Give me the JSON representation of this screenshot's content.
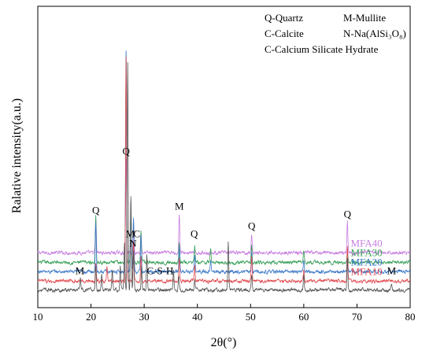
{
  "chart_data": {
    "type": "line",
    "title": "",
    "xlabel": "2θ(°)",
    "ylabel": "Ralative intensity(a.u.)",
    "xlim": [
      10,
      80
    ],
    "xticks": [
      10,
      20,
      30,
      40,
      50,
      60,
      70,
      80
    ],
    "y_ticks_shown": false,
    "legend": {
      "placement": "top-right",
      "lines": [
        {
          "col1": "Q-Quartz",
          "col2": "M-Mullite"
        },
        {
          "col1": "C-Calcite",
          "col2": "N-Na(AlSi₃O₈)"
        },
        {
          "col1": "C-Calcium Silicate Hydrate",
          "col2": ""
        }
      ]
    },
    "series": [
      {
        "name": "MFA40",
        "color": "#c77ee0",
        "baseline": 0.935,
        "noise": 0.08,
        "peaks": [
          [
            20.9,
            0.9
          ],
          [
            26.6,
            2.4
          ],
          [
            28.0,
            0.7
          ],
          [
            29.4,
            0.5
          ],
          [
            36.6,
            1.0
          ],
          [
            50.2,
            0.5
          ],
          [
            68.2,
            0.8
          ]
        ]
      },
      {
        "name": "MFA30",
        "color": "#3aa15a",
        "baseline": 0.69,
        "noise": 0.08,
        "peaks": [
          [
            20.9,
            1.2
          ],
          [
            26.6,
            5.3
          ],
          [
            27.5,
            1.2
          ],
          [
            29.4,
            0.8
          ],
          [
            36.6,
            0.5
          ],
          [
            39.5,
            0.4
          ],
          [
            42.5,
            0.3
          ],
          [
            50.2,
            0.4
          ],
          [
            60.0,
            0.3
          ],
          [
            68.2,
            0.3
          ]
        ]
      },
      {
        "name": "MFA20",
        "color": "#3c78c8",
        "baseline": 0.455,
        "noise": 0.08,
        "peaks": [
          [
            20.9,
            1.3
          ],
          [
            26.6,
            5.6
          ],
          [
            27.5,
            1.8
          ],
          [
            28.0,
            1.4
          ],
          [
            29.4,
            0.9
          ],
          [
            36.6,
            0.6
          ],
          [
            39.5,
            0.4
          ],
          [
            42.5,
            0.3
          ],
          [
            50.2,
            0.5
          ],
          [
            60.0,
            0.3
          ],
          [
            68.2,
            0.3
          ]
        ]
      },
      {
        "name": "MFA10",
        "color": "#e04b52",
        "baseline": 0.215,
        "noise": 0.08,
        "peaks": [
          [
            20.9,
            0.5
          ],
          [
            23.0,
            0.4
          ],
          [
            26.6,
            5.7
          ],
          [
            28.0,
            1.0
          ],
          [
            29.4,
            0.6
          ],
          [
            36.6,
            0.6
          ],
          [
            39.5,
            0.4
          ],
          [
            50.2,
            0.6
          ],
          [
            60.0,
            0.3
          ],
          [
            68.2,
            0.9
          ]
        ]
      },
      {
        "name": "",
        "color": "#555555",
        "baseline": -0.01,
        "noise": 0.08,
        "peaks": [
          [
            18.0,
            0.3
          ],
          [
            20.9,
            0.6
          ],
          [
            22.0,
            0.4
          ],
          [
            24.0,
            0.5
          ],
          [
            25.5,
            0.6
          ],
          [
            26.3,
            1.2
          ],
          [
            26.9,
            5.8
          ],
          [
            27.5,
            2.4
          ],
          [
            28.0,
            1.0
          ],
          [
            29.5,
            0.6
          ],
          [
            30.5,
            0.9
          ],
          [
            35.5,
            0.5
          ],
          [
            36.5,
            0.4
          ],
          [
            39.5,
            0.3
          ],
          [
            45.8,
            1.2
          ],
          [
            50.2,
            0.4
          ],
          [
            60.0,
            0.4
          ],
          [
            68.2,
            0.8
          ],
          [
            76.5,
            0.2
          ]
        ]
      }
    ],
    "series_labels": [
      {
        "text": "MFA40",
        "color": "#c77ee0",
        "series": 0
      },
      {
        "text": "MFA30",
        "color": "#3aa15a",
        "series": 1
      },
      {
        "text": "MFA20",
        "color": "#3c78c8",
        "series": 2
      },
      {
        "text": "MFA10",
        "color": "#e04b52",
        "series": 3
      }
    ],
    "annotations": [
      {
        "text": "Q",
        "x": 20.9,
        "series": 0
      },
      {
        "text": "Q",
        "x": 26.6,
        "series": 0
      },
      {
        "text": "M",
        "x": 27.4,
        "series": 0
      },
      {
        "text": "C",
        "x": 28.6,
        "series": 0
      },
      {
        "text": "M",
        "x": 36.6,
        "series": 0
      },
      {
        "text": "Q",
        "x": 39.4,
        "series": 0
      },
      {
        "text": "Q",
        "x": 50.2,
        "series": 0
      },
      {
        "text": "Q",
        "x": 68.2,
        "series": 0
      },
      {
        "text": "N",
        "x": 27.9,
        "series": 1
      },
      {
        "text": "M",
        "x": 17.9,
        "series": 4
      },
      {
        "text": "C-S-H",
        "x": 33.0,
        "series": 4
      },
      {
        "text": "M",
        "x": 76.5,
        "series": 4
      }
    ]
  }
}
